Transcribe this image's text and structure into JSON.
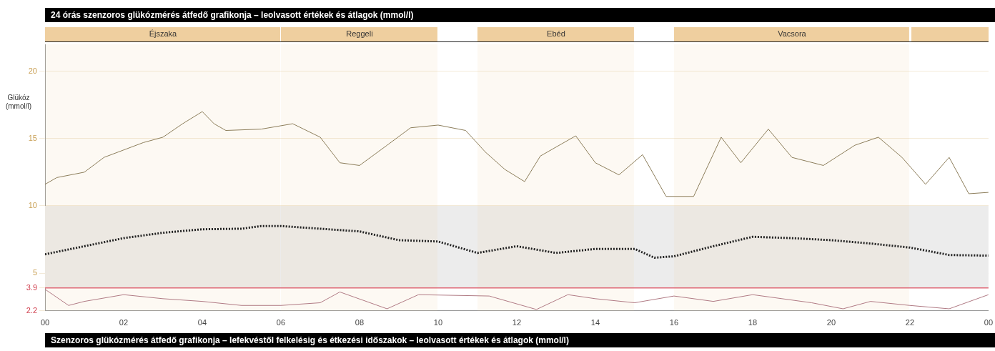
{
  "chart_data": {
    "type": "line",
    "title": "24 órás szenzoros glükózmérés átfedő grafikonja – leolvasott értékek és átlagok (mmol/l)",
    "ylabel": "Glükóz (mmol/l)",
    "xlim": [
      0,
      24
    ],
    "xticks": [
      {
        "value": 0,
        "label": "00"
      },
      {
        "value": 2,
        "label": "02"
      },
      {
        "value": 4,
        "label": "04"
      },
      {
        "value": 6,
        "label": "06"
      },
      {
        "value": 8,
        "label": "08"
      },
      {
        "value": 10,
        "label": "10"
      },
      {
        "value": 12,
        "label": "12"
      },
      {
        "value": 14,
        "label": "14"
      },
      {
        "value": 16,
        "label": "16"
      },
      {
        "value": 18,
        "label": "18"
      },
      {
        "value": 20,
        "label": "20"
      },
      {
        "value": 22,
        "label": "22"
      },
      {
        "value": 24,
        "label": "00"
      }
    ],
    "ylim": [
      2.2,
      22
    ],
    "yticks": [
      2.2,
      3.9,
      5,
      10,
      15,
      20
    ],
    "grid": "y",
    "series": [
      {
        "color": "#8c7d5a",
        "line_style": "solid",
        "x": [
          0,
          0.3,
          1,
          1.5,
          2.5,
          3,
          3.5,
          4,
          4.3,
          4.6,
          5.5,
          6.3,
          7,
          7.5,
          8,
          8.7,
          9.3,
          10,
          10.7,
          11.2,
          11.7,
          12.2,
          12.6,
          13.5,
          14,
          14.6,
          15.2,
          15.8,
          16.5,
          17.2,
          17.7,
          18.4,
          19,
          19.8,
          20.6,
          21.2,
          21.8,
          22.4,
          23,
          23.5,
          24
        ],
        "values": [
          11.6,
          12.1,
          12.5,
          13.6,
          14.7,
          15.1,
          16.1,
          17,
          16.1,
          15.6,
          15.7,
          16.1,
          15.1,
          13.2,
          13,
          14.5,
          15.8,
          16,
          15.6,
          14,
          12.7,
          11.8,
          13.7,
          15.2,
          13.2,
          12.3,
          13.8,
          10.7,
          10.7,
          15.1,
          13.2,
          15.7,
          13.6,
          13,
          14.5,
          15.1,
          13.6,
          11.6,
          13.6,
          10.9,
          11
        ]
      },
      {
        "color": "#b07a84",
        "line_style": "solid",
        "x": [
          0,
          0.6,
          1,
          2,
          3,
          4,
          5,
          6,
          7,
          7.5,
          8.7,
          9.5,
          11.3,
          12.5,
          13.3,
          14,
          15,
          16,
          17,
          18,
          19.5,
          20.3,
          21,
          22,
          23,
          24
        ],
        "values": [
          3.8,
          2.6,
          2.9,
          3.4,
          3.1,
          2.9,
          2.6,
          2.6,
          2.8,
          3.6,
          2.35,
          3.4,
          3.3,
          2.3,
          3.4,
          3.1,
          2.8,
          3.3,
          2.9,
          3.4,
          2.8,
          2.35,
          2.9,
          2.6,
          2.35,
          3.4
        ]
      },
      {
        "color": "#222222",
        "line_style": "dotted",
        "x": [
          0,
          1,
          2,
          3,
          4,
          5,
          5.5,
          6,
          7,
          8,
          9,
          10,
          11,
          12,
          13,
          14,
          15,
          15.5,
          16,
          17,
          18,
          19,
          20,
          21,
          22,
          23,
          24
        ],
        "values": [
          6.4,
          7,
          7.6,
          8,
          8.26,
          8.3,
          8.5,
          8.5,
          8.3,
          8.1,
          7.45,
          7.35,
          6.5,
          7,
          6.5,
          6.8,
          6.8,
          6.15,
          6.25,
          7,
          7.7,
          7.6,
          7.45,
          7.2,
          6.9,
          6.35,
          6.3
        ]
      }
    ],
    "ref_lines": [
      {
        "axis": "y",
        "value": 3.9,
        "color": "#e06a78",
        "line_style": "solid"
      }
    ],
    "bands": [
      {
        "axis": "y",
        "from": 3.9,
        "to": 10,
        "color": "#ececec"
      },
      {
        "axis": "x",
        "from": 0,
        "to": 6,
        "label": "Éjszaka",
        "color": "#efcf9f"
      },
      {
        "axis": "x",
        "from": 6,
        "to": 10,
        "label": "Reggeli",
        "color": "#efcf9f"
      },
      {
        "axis": "x",
        "from": 11,
        "to": 15,
        "label": "Ebéd",
        "color": "#efcf9f"
      },
      {
        "axis": "x",
        "from": 16,
        "to": 22,
        "label": "Vacsora",
        "color": "#efcf9f"
      }
    ],
    "annotations": [
      "Szenzoros glükózmérés átfedő grafikonja – lefekvéstől felkelésig és étkezési időszakok – leolvasott értékek és átlagok (mmol/l)"
    ]
  }
}
